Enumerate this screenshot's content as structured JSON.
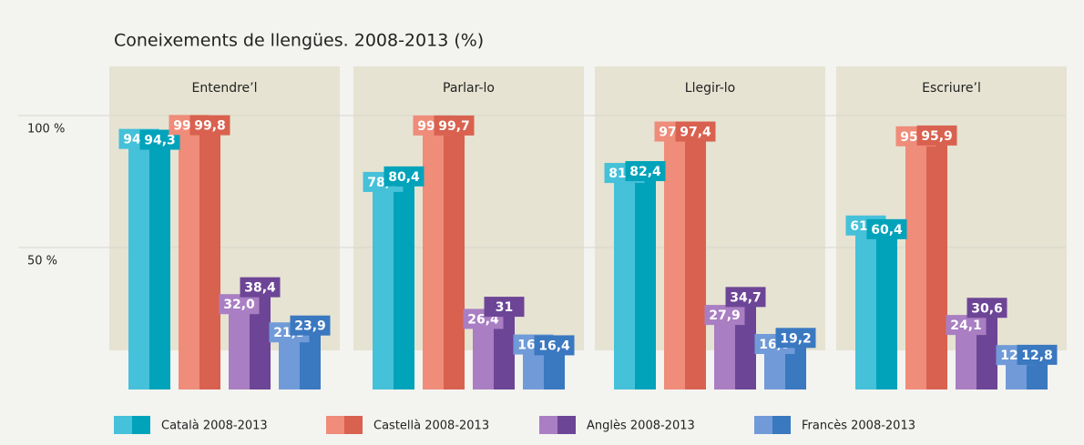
{
  "chart_data": {
    "type": "bar",
    "title": "Coneixements de llengües. 2008-2013 (%)",
    "categories": [
      "Entendre’l",
      "Parlar-lo",
      "Llegir-lo",
      "Escriure’l"
    ],
    "series": [
      {
        "name": "Català 2008-2013",
        "colors": [
          "#45c1d9",
          "#00a3ba"
        ],
        "values": [
          [
            94.6,
            94.3
          ],
          [
            78.3,
            80.4
          ],
          [
            81.7,
            82.4
          ],
          [
            61.8,
            60.4
          ]
        ],
        "value_labels": [
          [
            "94,6",
            "94,3"
          ],
          [
            "78,3",
            "80,4"
          ],
          [
            "81,7",
            "82,4"
          ],
          [
            "61,8",
            "60,4"
          ]
        ]
      },
      {
        "name": "Castellà 2008-2013",
        "colors": [
          "#ef8c7a",
          "#d9614f"
        ],
        "values": [
          [
            99.9,
            99.8
          ],
          [
            99.7,
            99.7
          ],
          [
            97.4,
            97.4
          ],
          [
            95.6,
            95.9
          ]
        ],
        "value_labels": [
          [
            "99,9",
            "99,8"
          ],
          [
            "99,7",
            "99,7"
          ],
          [
            "97,4",
            "97,4"
          ],
          [
            "95,6",
            "95,9"
          ]
        ]
      },
      {
        "name": "Anglès 2008-2013",
        "colors": [
          "#a97ec2",
          "#6d4596"
        ],
        "values": [
          [
            32.0,
            38.4
          ],
          [
            26.4,
            31
          ],
          [
            27.9,
            34.7
          ],
          [
            24.1,
            30.6
          ]
        ],
        "value_labels": [
          [
            "32,0",
            "38,4"
          ],
          [
            "26,4",
            "31"
          ],
          [
            "27,9",
            "34,7"
          ],
          [
            "24,1",
            "30,6"
          ]
        ]
      },
      {
        "name": "Francès 2008-2013",
        "colors": [
          "#709bd8",
          "#3a78c0"
        ],
        "values": [
          [
            21.3,
            23.9
          ],
          [
            16.7,
            16.4
          ],
          [
            16.9,
            19.2
          ],
          [
            12.7,
            12.8
          ]
        ],
        "value_labels": [
          [
            "21,3",
            "23,9"
          ],
          [
            "16,7",
            "16,4"
          ],
          [
            "16,9",
            "19,2"
          ],
          [
            "12,7",
            "12,8"
          ]
        ]
      }
    ],
    "ylim": [
      0,
      100
    ],
    "yticks": [
      {
        "value": 50,
        "label": "50 %"
      },
      {
        "value": 100,
        "label": "100 %"
      }
    ],
    "grid": true
  }
}
